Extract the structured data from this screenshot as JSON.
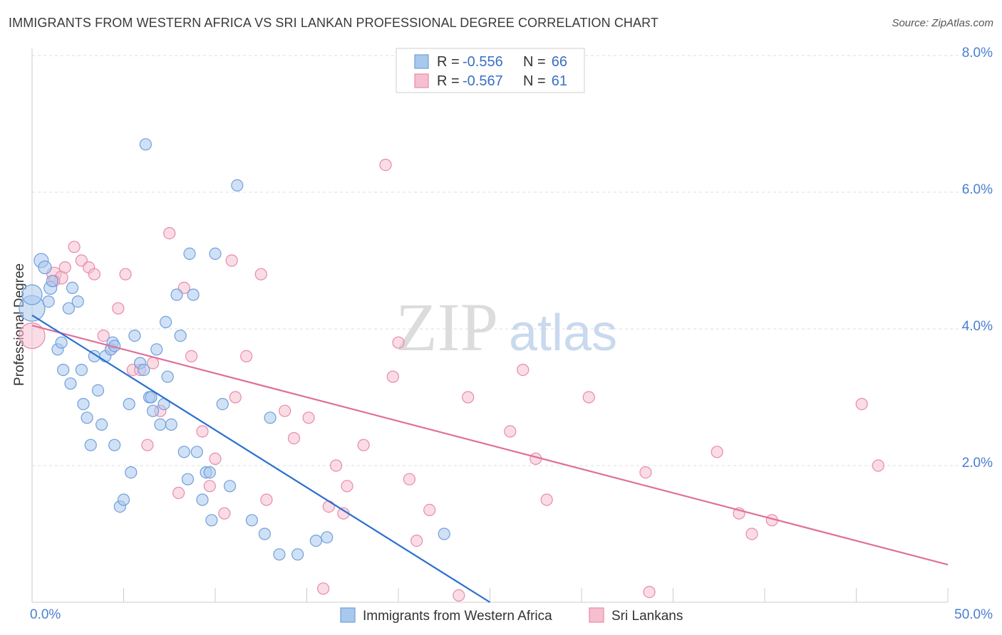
{
  "title": "IMMIGRANTS FROM WESTERN AFRICA VS SRI LANKAN PROFESSIONAL DEGREE CORRELATION CHART",
  "source": "Source: ZipAtlas.com",
  "watermark": {
    "zip": "ZIP",
    "atlas": "atlas"
  },
  "colors": {
    "blue_fill": "#a9c8ee",
    "blue_stroke": "#6f9fdb",
    "blue_line": "#2a6fd0",
    "pink_fill": "#f5bfd0",
    "pink_stroke": "#e98aab",
    "pink_line": "#e0709a",
    "tick_text": "#4a7fd0",
    "grid": "#dddddd"
  },
  "legend": {
    "rows": [
      {
        "r_label": "R =",
        "r_value": "-0.556",
        "n_label": "N =",
        "n_value": "66"
      },
      {
        "r_label": "R =",
        "r_value": "-0.567",
        "n_label": "N =",
        "n_value": "61"
      }
    ]
  },
  "bottom_legend": [
    "Immigrants from Western Africa",
    "Sri Lankans"
  ],
  "chart_data": {
    "type": "scatter",
    "title": "IMMIGRANTS FROM WESTERN AFRICA VS SRI LANKAN PROFESSIONAL DEGREE CORRELATION CHART",
    "xlabel": "",
    "ylabel": "Professional Degree",
    "xlim": [
      0,
      50
    ],
    "ylim": [
      0,
      8.0
    ],
    "x_tick_labels": [
      "0.0%",
      "50.0%"
    ],
    "y_ticks": [
      2,
      4,
      6,
      8
    ],
    "y_tick_labels": [
      "2.0%",
      "4.0%",
      "6.0%",
      "8.0%"
    ],
    "series": [
      {
        "name": "Immigrants from Western Africa",
        "R": -0.556,
        "N": 66,
        "trend": {
          "x0": 0,
          "y0": 4.2,
          "x1": 25,
          "y1": 0.0
        },
        "points": [
          [
            0.0,
            4.3,
            18
          ],
          [
            0.0,
            4.5,
            14
          ],
          [
            0.5,
            5.0,
            10
          ],
          [
            0.7,
            4.9,
            9
          ],
          [
            1.0,
            4.6,
            9
          ],
          [
            1.1,
            4.7,
            8
          ],
          [
            0.9,
            4.4,
            8
          ],
          [
            2.2,
            4.6,
            8
          ],
          [
            2.5,
            4.4,
            8
          ],
          [
            2.0,
            4.3,
            8
          ],
          [
            1.4,
            3.7,
            8
          ],
          [
            1.6,
            3.8,
            8
          ],
          [
            1.7,
            3.4,
            8
          ],
          [
            2.1,
            3.2,
            8
          ],
          [
            2.7,
            3.4,
            8
          ],
          [
            2.8,
            2.9,
            8
          ],
          [
            3.0,
            2.7,
            8
          ],
          [
            3.2,
            2.3,
            8
          ],
          [
            3.4,
            3.6,
            8
          ],
          [
            3.6,
            3.1,
            8
          ],
          [
            3.8,
            2.6,
            8
          ],
          [
            4.0,
            3.6,
            8
          ],
          [
            4.3,
            3.7,
            8
          ],
          [
            4.4,
            3.8,
            8
          ],
          [
            4.5,
            3.75,
            8
          ],
          [
            4.5,
            2.3,
            8
          ],
          [
            4.8,
            1.4,
            8
          ],
          [
            5.0,
            1.5,
            8
          ],
          [
            5.3,
            2.9,
            8
          ],
          [
            5.4,
            1.9,
            8
          ],
          [
            5.6,
            3.9,
            8
          ],
          [
            5.9,
            3.5,
            8
          ],
          [
            6.1,
            3.4,
            8
          ],
          [
            6.2,
            6.7,
            8
          ],
          [
            6.4,
            3.0,
            8
          ],
          [
            6.5,
            3.0,
            8
          ],
          [
            6.6,
            2.8,
            8
          ],
          [
            6.8,
            3.7,
            8
          ],
          [
            7.0,
            2.6,
            8
          ],
          [
            7.2,
            2.9,
            8
          ],
          [
            7.3,
            4.1,
            8
          ],
          [
            7.4,
            3.3,
            8
          ],
          [
            7.6,
            2.6,
            8
          ],
          [
            7.9,
            4.5,
            8
          ],
          [
            8.1,
            3.9,
            8
          ],
          [
            8.3,
            2.2,
            8
          ],
          [
            8.5,
            1.8,
            8
          ],
          [
            8.6,
            5.1,
            8
          ],
          [
            8.8,
            4.5,
            8
          ],
          [
            9.0,
            2.2,
            8
          ],
          [
            9.3,
            1.5,
            8
          ],
          [
            9.5,
            1.9,
            8
          ],
          [
            9.7,
            1.9,
            8
          ],
          [
            9.8,
            1.2,
            8
          ],
          [
            10.0,
            5.1,
            8
          ],
          [
            10.4,
            2.9,
            8
          ],
          [
            10.8,
            1.7,
            8
          ],
          [
            11.2,
            6.1,
            8
          ],
          [
            12.0,
            1.2,
            8
          ],
          [
            12.7,
            1.0,
            8
          ],
          [
            13.0,
            2.7,
            8
          ],
          [
            13.5,
            0.7,
            8
          ],
          [
            14.5,
            0.7,
            8
          ],
          [
            15.5,
            0.9,
            8
          ],
          [
            16.1,
            0.95,
            8
          ],
          [
            22.5,
            1.0,
            8
          ]
        ]
      },
      {
        "name": "Sri Lankans",
        "R": -0.567,
        "N": 61,
        "trend": {
          "x0": 0,
          "y0": 4.05,
          "x1": 50,
          "y1": 0.55
        },
        "points": [
          [
            0.0,
            3.9,
            18
          ],
          [
            1.2,
            4.8,
            10
          ],
          [
            1.6,
            4.75,
            9
          ],
          [
            1.2,
            4.7,
            8
          ],
          [
            1.8,
            4.9,
            8
          ],
          [
            2.3,
            5.2,
            8
          ],
          [
            2.7,
            5.0,
            8
          ],
          [
            3.1,
            4.9,
            8
          ],
          [
            3.4,
            4.8,
            8
          ],
          [
            3.9,
            3.9,
            8
          ],
          [
            4.3,
            3.7,
            8
          ],
          [
            4.7,
            4.3,
            8
          ],
          [
            5.1,
            4.8,
            8
          ],
          [
            5.5,
            3.4,
            8
          ],
          [
            5.9,
            3.4,
            8
          ],
          [
            6.3,
            2.3,
            8
          ],
          [
            6.6,
            3.5,
            8
          ],
          [
            7.0,
            2.8,
            8
          ],
          [
            7.5,
            5.4,
            8
          ],
          [
            8.0,
            1.6,
            8
          ],
          [
            8.3,
            4.6,
            8
          ],
          [
            8.7,
            3.6,
            8
          ],
          [
            9.3,
            2.5,
            8
          ],
          [
            9.7,
            1.7,
            8
          ],
          [
            10.0,
            2.1,
            8
          ],
          [
            10.5,
            1.3,
            8
          ],
          [
            10.9,
            5.0,
            8
          ],
          [
            11.1,
            3.0,
            8
          ],
          [
            11.7,
            3.6,
            8
          ],
          [
            12.5,
            4.8,
            8
          ],
          [
            12.8,
            1.5,
            8
          ],
          [
            13.8,
            2.8,
            8
          ],
          [
            14.3,
            2.4,
            8
          ],
          [
            15.1,
            2.7,
            8
          ],
          [
            15.9,
            0.2,
            8
          ],
          [
            16.2,
            1.4,
            8
          ],
          [
            16.6,
            2.0,
            8
          ],
          [
            17.0,
            1.3,
            8
          ],
          [
            17.2,
            1.7,
            8
          ],
          [
            18.1,
            2.3,
            8
          ],
          [
            19.3,
            6.4,
            8
          ],
          [
            19.7,
            3.3,
            8
          ],
          [
            20.0,
            3.8,
            8
          ],
          [
            20.6,
            1.8,
            8
          ],
          [
            21.0,
            0.9,
            8
          ],
          [
            21.7,
            1.35,
            8
          ],
          [
            23.3,
            0.1,
            8
          ],
          [
            23.8,
            3.0,
            8
          ],
          [
            26.1,
            2.5,
            8
          ],
          [
            26.8,
            3.4,
            8
          ],
          [
            27.5,
            2.1,
            8
          ],
          [
            28.1,
            1.5,
            8
          ],
          [
            30.4,
            3.0,
            8
          ],
          [
            33.5,
            1.9,
            8
          ],
          [
            33.7,
            0.15,
            8
          ],
          [
            37.4,
            2.2,
            8
          ],
          [
            38.6,
            1.3,
            8
          ],
          [
            39.3,
            1.0,
            8
          ],
          [
            40.4,
            1.2,
            8
          ],
          [
            45.3,
            2.9,
            8
          ],
          [
            46.2,
            2.0,
            8
          ]
        ]
      }
    ]
  }
}
